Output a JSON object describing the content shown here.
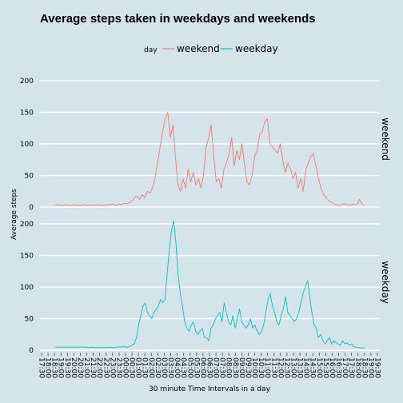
{
  "chart_data": {
    "type": "line",
    "title": "Average steps taken in weekdays and weekends",
    "xlabel": "30 minute Time Intervals in a day",
    "ylabel": "Average steps",
    "legend": {
      "title": "day",
      "position": "top",
      "entries": [
        "weekend",
        "weekday"
      ]
    },
    "colors": {
      "weekend": "#f8766d",
      "weekday": "#00bfc4",
      "background": "#d5e4eb",
      "grid": "#ffffff"
    },
    "grid": true,
    "facets": [
      "weekend",
      "weekday"
    ],
    "ylim": [
      0,
      200
    ],
    "yticks": [
      0,
      50,
      100,
      150,
      200
    ],
    "x_tick_labels": [
      "17:30",
      "18:00",
      "18:30",
      "19:00",
      "19:30",
      "20:00",
      "20:30",
      "21:00",
      "21:30",
      "22:00",
      "22:30",
      "23:00",
      "23:30",
      "00:00",
      "00:30",
      "01:00",
      "01:30",
      "02:00",
      "02:30",
      "03:00",
      "03:30",
      "04:00",
      "04:30",
      "05:00",
      "05:30",
      "06:00",
      "06:30",
      "07:00",
      "07:30",
      "08:00",
      "08:30",
      "09:00",
      "09:30",
      "10:00",
      "10:30",
      "11:00",
      "11:30",
      "12:00",
      "12:30",
      "13:00",
      "13:30",
      "14:00",
      "14:30",
      "15:00",
      "15:30",
      "16:00",
      "16:30",
      "17:00",
      "17:30",
      "18:00",
      "18:30",
      "19:00",
      "19:30"
    ],
    "series": [
      {
        "name": "weekend",
        "values": [
          3,
          4,
          3,
          3,
          4,
          3,
          3,
          4,
          3,
          3,
          3,
          4,
          3,
          3,
          3,
          3,
          3,
          4,
          3,
          3,
          4,
          3,
          5,
          4,
          3,
          5,
          4,
          6,
          5,
          7,
          10,
          15,
          18,
          12,
          20,
          15,
          25,
          22,
          30,
          45,
          70,
          95,
          120,
          140,
          150,
          110,
          130,
          80,
          35,
          25,
          45,
          30,
          60,
          40,
          55,
          35,
          45,
          30,
          50,
          95,
          110,
          130,
          80,
          40,
          45,
          30,
          60,
          70,
          85,
          110,
          65,
          90,
          75,
          100,
          70,
          40,
          35,
          50,
          80,
          90,
          115,
          120,
          135,
          140,
          100,
          95,
          90,
          85,
          100,
          75,
          55,
          70,
          60,
          45,
          55,
          30,
          45,
          25,
          60,
          70,
          80,
          85,
          65,
          45,
          30,
          20,
          15,
          10,
          8,
          5,
          4,
          3,
          4,
          5,
          4,
          3,
          4,
          5,
          4,
          12,
          5,
          3
        ]
      },
      {
        "name": "weekday",
        "values": [
          5,
          5,
          5,
          5,
          5,
          5,
          5,
          5,
          5,
          5,
          5,
          5,
          5,
          5,
          5,
          4,
          4,
          5,
          4,
          4,
          4,
          5,
          4,
          4,
          4,
          5,
          4,
          4,
          5,
          5,
          5,
          6,
          5,
          5,
          6,
          8,
          10,
          20,
          40,
          55,
          70,
          75,
          60,
          55,
          50,
          60,
          65,
          70,
          80,
          75,
          80,
          120,
          160,
          190,
          205,
          170,
          120,
          90,
          70,
          45,
          35,
          30,
          40,
          45,
          30,
          25,
          30,
          35,
          20,
          20,
          15,
          35,
          40,
          50,
          55,
          60,
          45,
          75,
          60,
          45,
          40,
          55,
          35,
          50,
          65,
          45,
          40,
          35,
          40,
          50,
          35,
          40,
          30,
          25,
          30,
          40,
          60,
          80,
          90,
          70,
          60,
          45,
          40,
          55,
          65,
          85,
          60,
          55,
          50,
          45,
          50,
          60,
          75,
          90,
          100,
          110,
          85,
          60,
          40,
          35,
          20,
          25,
          15,
          10,
          15,
          20,
          10,
          15,
          12,
          10,
          8,
          15,
          10,
          12,
          8,
          10,
          6,
          5,
          4,
          4,
          3,
          4
        ]
      }
    ]
  }
}
